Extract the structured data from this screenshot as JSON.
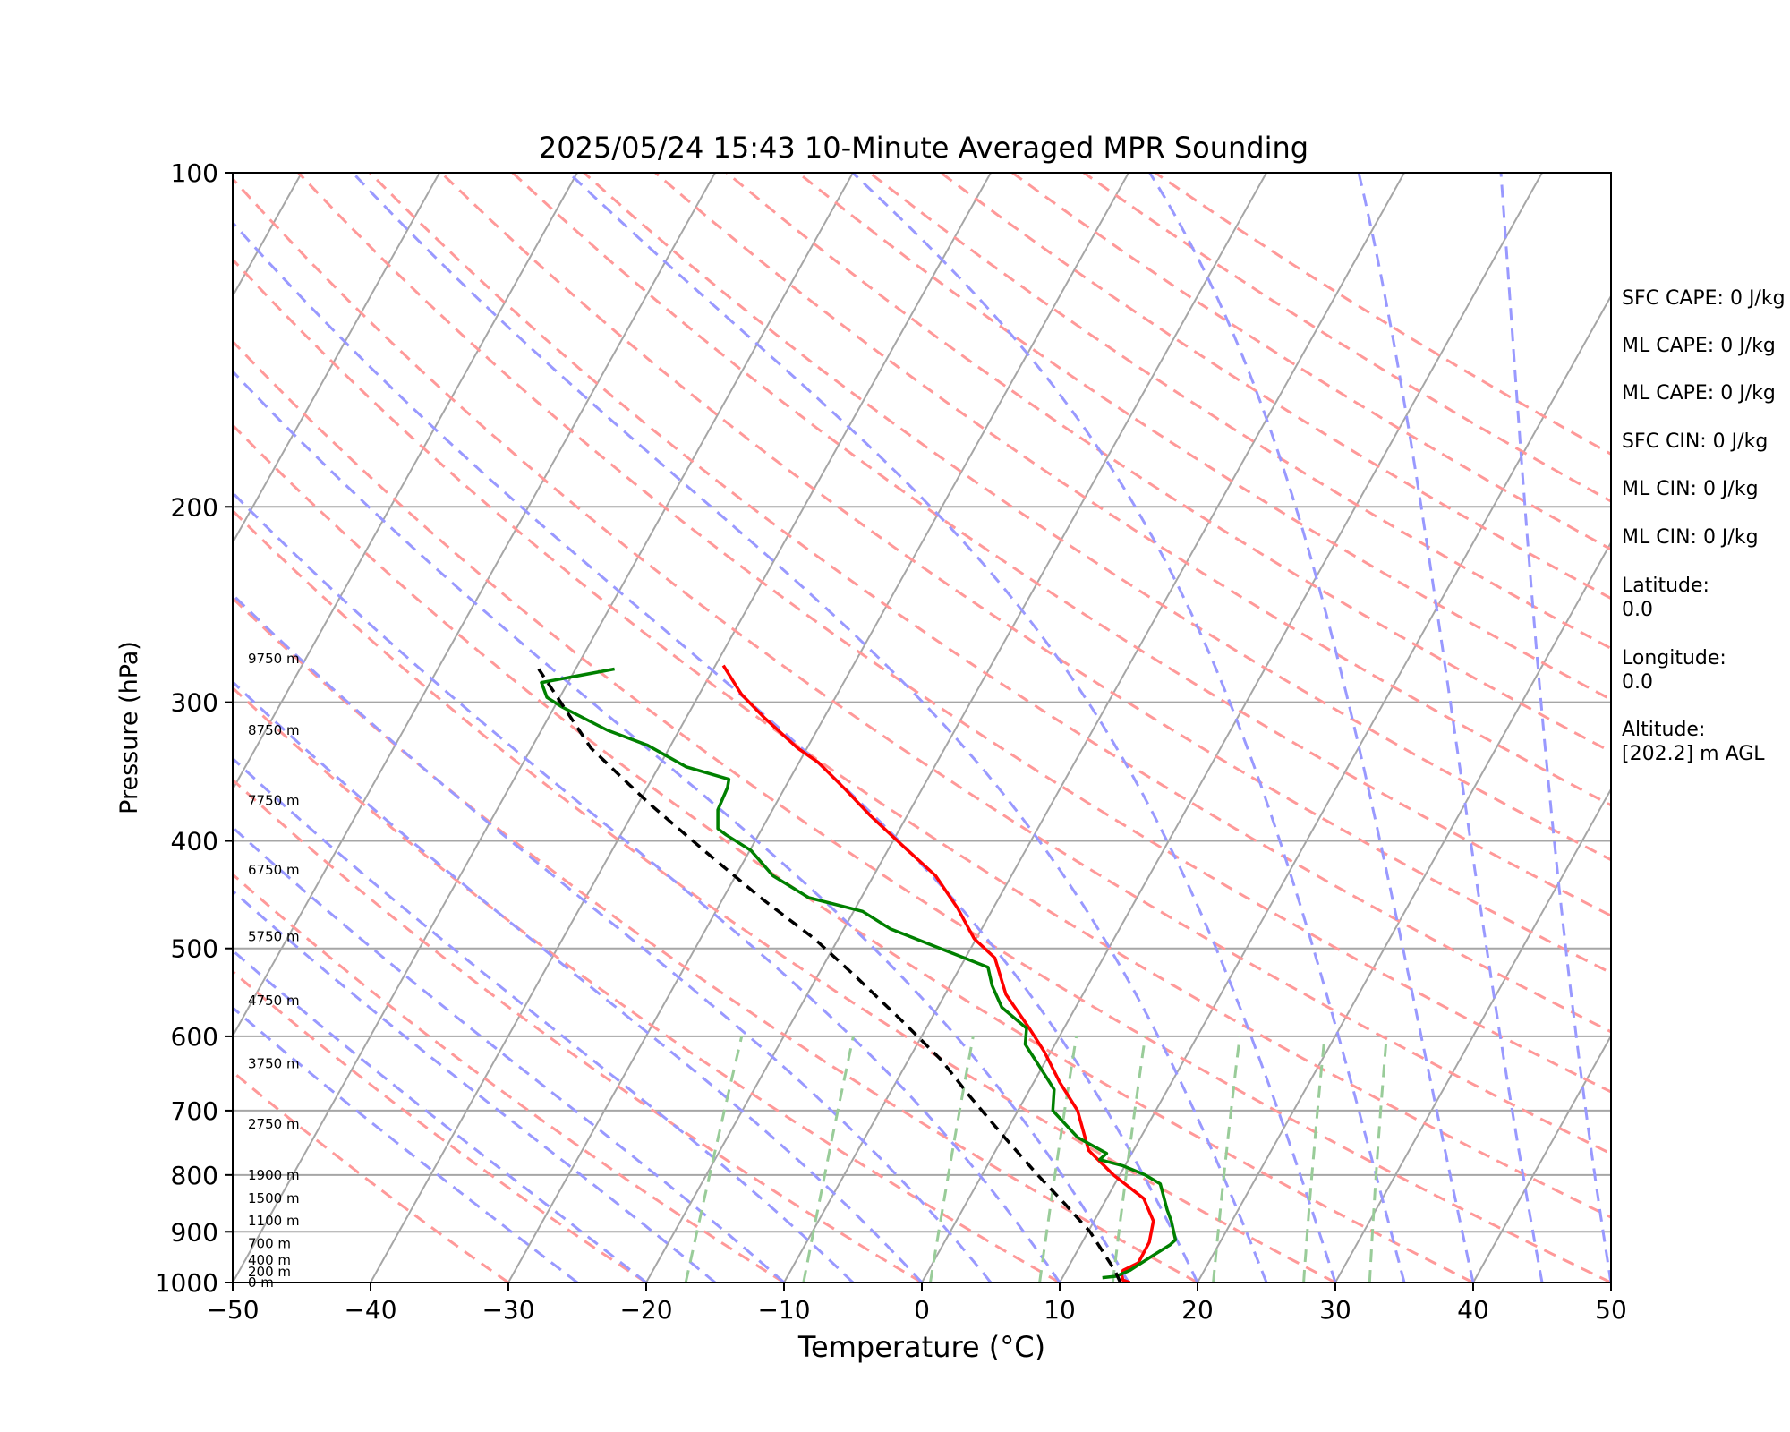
{
  "chart_data": {
    "type": "line",
    "subtype": "skew-t log-p",
    "title": "2025/05/24 15:43 10-Minute Averaged MPR Sounding",
    "xlabel": "Temperature (°C)",
    "ylabel": "Pressure (hPa)",
    "xlim": [
      -50,
      50
    ],
    "ylim": [
      1000,
      100
    ],
    "y_scale": "log",
    "x_ticks": [
      "−50",
      "−40",
      "−30",
      "−20",
      "−10",
      "0",
      "10",
      "20",
      "30",
      "40",
      "50"
    ],
    "x_tick_values": [
      -50,
      -40,
      -30,
      -20,
      -10,
      0,
      10,
      20,
      30,
      40,
      50
    ],
    "y_ticks": [
      "100",
      "200",
      "300",
      "400",
      "500",
      "600",
      "700",
      "800",
      "900",
      "1000"
    ],
    "y_tick_values": [
      100,
      200,
      300,
      400,
      500,
      600,
      700,
      800,
      900,
      1000
    ],
    "grid": true,
    "height_labels": [
      {
        "p": 1000,
        "text": "0 m"
      },
      {
        "p": 978,
        "text": "200 m"
      },
      {
        "p": 955,
        "text": "400 m"
      },
      {
        "p": 922,
        "text": "700 m"
      },
      {
        "p": 880,
        "text": "1100 m"
      },
      {
        "p": 840,
        "text": "1500 m"
      },
      {
        "p": 800,
        "text": "1900 m"
      },
      {
        "p": 720,
        "text": "2750 m"
      },
      {
        "p": 635,
        "text": "3750 m"
      },
      {
        "p": 557,
        "text": "4750 m"
      },
      {
        "p": 488,
        "text": "5750 m"
      },
      {
        "p": 425,
        "text": "6750 m"
      },
      {
        "p": 368,
        "text": "7750 m"
      },
      {
        "p": 318,
        "text": "8750 m"
      },
      {
        "p": 274,
        "text": "9750 m"
      }
    ],
    "series": [
      {
        "role": "temperature",
        "color": "#ff0000",
        "x_skewed": [
          15.1,
          14.6,
          14.5,
          14.6,
          15.7,
          16.5,
          16.8,
          16.1,
          13.9,
          12.1,
          11.3,
          10.0,
          8.9,
          7.8,
          6.1,
          5.3,
          3.8,
          2.6,
          1.0,
          -1.3,
          -3.7,
          -5.5,
          -7.5,
          -9.0,
          -11.4,
          -13.1,
          -14.4
        ],
        "p": [
          1000,
          995,
          985,
          975,
          960,
          920,
          880,
          840,
          800,
          760,
          700,
          660,
          620,
          590,
          550,
          510,
          490,
          460,
          430,
          405,
          380,
          360,
          340,
          330,
          310,
          295,
          278
        ]
      },
      {
        "role": "dewpoint",
        "color": "#008000",
        "x_skewed": [
          13.1,
          14.1,
          15.1,
          16.8,
          18.0,
          18.4,
          18.1,
          17.8,
          17.3,
          16.2,
          14.6,
          12.9,
          13.4,
          11.3,
          9.5,
          9.6,
          9.1,
          7.5,
          7.6,
          5.8,
          5.1,
          4.8,
          -2.3,
          -4.3,
          -8.2,
          -10.8,
          -12.4,
          -14.2,
          -14.8,
          -14.8,
          -14.1,
          -14.0,
          -17.1,
          -19.9,
          -22.8,
          -26.1,
          -27.2,
          -27.6,
          -22.3
        ],
        "p": [
          990,
          987,
          975,
          945,
          925,
          915,
          880,
          860,
          815,
          800,
          785,
          775,
          765,
          740,
          700,
          670,
          655,
          610,
          590,
          565,
          540,
          520,
          480,
          463,
          450,
          430,
          408,
          395,
          390,
          375,
          358,
          352,
          343,
          328,
          318,
          303,
          297,
          288,
          280
        ]
      },
      {
        "role": "parcel",
        "color": "#000000",
        "dashed": true,
        "x_skewed": [
          14.4,
          14.0,
          12.2,
          10.4,
          8.4,
          6.0,
          3.5,
          1.4,
          -1.5,
          -4.8,
          -7.8,
          -11.7,
          -15.6,
          -19.8,
          -24.0,
          -27.8
        ],
        "p": [
          1000,
          975,
          900,
          850,
          800,
          740,
          680,
          630,
          580,
          530,
          490,
          450,
          410,
          370,
          330,
          280
        ]
      }
    ],
    "stats": [
      "SFC CAPE: 0 J/kg",
      "ML CAPE: 0 J/kg",
      "ML CAPE: 0 J/kg",
      "SFC CIN: 0 J/kg",
      "ML CIN: 0 J/kg",
      "ML CIN: 0 J/kg",
      "Latitude:",
      "0.0",
      "Longitude:",
      "0.0",
      "Altitude:",
      "[202.2] m AGL"
    ],
    "colors": {
      "isotherm": "#a6a6a6",
      "isobar": "#a6a6a6",
      "dry_adiabat": "#ff9999",
      "moist_adiabat": "#9999ff",
      "mixing_ratio": "#99cc99"
    }
  }
}
